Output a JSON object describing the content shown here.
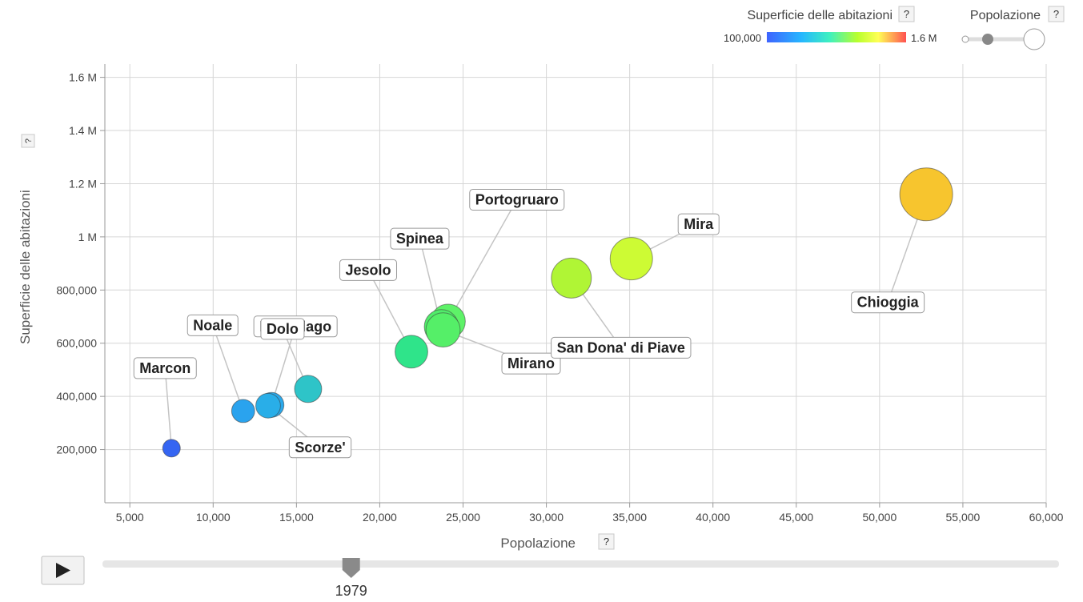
{
  "legend": {
    "color_title": "Superficie delle abitazioni",
    "color_min": "100,000",
    "color_max": "1.6 M",
    "size_title": "Popolazione",
    "help": "?"
  },
  "timeline": {
    "year": "1979",
    "progress": 0.26,
    "play_icon": "play-icon"
  },
  "colors": {
    "gradient": [
      "#3e63ff",
      "#26b7ff",
      "#3ef0c0",
      "#b8ff2e",
      "#ffff55",
      "#ff5151"
    ],
    "grid": "#d6d6d6",
    "axis": "#999999"
  },
  "chart_data": {
    "type": "scatter",
    "xlabel": "Popolazione",
    "ylabel": "Superficie delle abitazioni",
    "xlim": [
      3500,
      60000
    ],
    "ylim": [
      0,
      1650000
    ],
    "x_ticks": [
      {
        "v": 5000,
        "label": "5,000"
      },
      {
        "v": 10000,
        "label": "10,000"
      },
      {
        "v": 15000,
        "label": "15,000"
      },
      {
        "v": 20000,
        "label": "20,000"
      },
      {
        "v": 25000,
        "label": "25,000"
      },
      {
        "v": 30000,
        "label": "30,000"
      },
      {
        "v": 35000,
        "label": "35,000"
      },
      {
        "v": 40000,
        "label": "40,000"
      },
      {
        "v": 45000,
        "label": "45,000"
      },
      {
        "v": 50000,
        "label": "50,000"
      },
      {
        "v": 55000,
        "label": "55,000"
      },
      {
        "v": 60000,
        "label": "60,000"
      }
    ],
    "y_ticks": [
      {
        "v": 200000,
        "label": "200,000"
      },
      {
        "v": 400000,
        "label": "400,000"
      },
      {
        "v": 600000,
        "label": "600,000"
      },
      {
        "v": 800000,
        "label": "800,000"
      },
      {
        "v": 1000000,
        "label": "1 M"
      },
      {
        "v": 1200000,
        "label": "1.2 M"
      },
      {
        "v": 1400000,
        "label": "1.4 M"
      },
      {
        "v": 1600000,
        "label": "1.6 M"
      }
    ],
    "points": [
      {
        "name": "Marcon",
        "x": 7500,
        "y": 205000,
        "color": "#3565f2",
        "callout_dx": -8,
        "callout_dy": -100
      },
      {
        "name": "Noale",
        "x": 11800,
        "y": 345000,
        "color": "#2aa3ee",
        "callout_dx": -38,
        "callout_dy": -107
      },
      {
        "name": "Martellago",
        "x": 13500,
        "y": 368000,
        "color": "#2aa9ec",
        "callout_dx": 30,
        "callout_dy": -98
      },
      {
        "name": "Scorze'",
        "x": 13300,
        "y": 365000,
        "color": "#29aee8",
        "callout_dx": 65,
        "callout_dy": 52
      },
      {
        "name": "Dolo",
        "x": 15700,
        "y": 428000,
        "color": "#2ec4c8",
        "callout_dx": -32,
        "callout_dy": -75
      },
      {
        "name": "Jesolo",
        "x": 21900,
        "y": 568000,
        "color": "#2fe48a",
        "callout_dx": -54,
        "callout_dy": -102
      },
      {
        "name": "Portogruaro",
        "x": 24100,
        "y": 682000,
        "color": "#5ef268",
        "callout_dx": 86,
        "callout_dy": -152
      },
      {
        "name": "Spinea",
        "x": 23700,
        "y": 662000,
        "color": "#50ed6a",
        "callout_dx": -27,
        "callout_dy": -110
      },
      {
        "name": "Mirano",
        "x": 23800,
        "y": 650000,
        "color": "#55ef68",
        "callout_dx": 110,
        "callout_dy": 42
      },
      {
        "name": "San Dona' di Piave",
        "x": 31500,
        "y": 845000,
        "color": "#b0f535",
        "callout_dx": 62,
        "callout_dy": 87
      },
      {
        "name": "Mira",
        "x": 35100,
        "y": 918000,
        "color": "#cdfb34",
        "callout_dx": 84,
        "callout_dy": -43
      },
      {
        "name": "Chioggia",
        "x": 52800,
        "y": 1160000,
        "color": "#f7c52e",
        "callout_dx": -48,
        "callout_dy": 135
      }
    ],
    "size": {
      "pop_min": 7500,
      "pop_max": 52800,
      "r_min": 11,
      "r_max": 33
    }
  }
}
